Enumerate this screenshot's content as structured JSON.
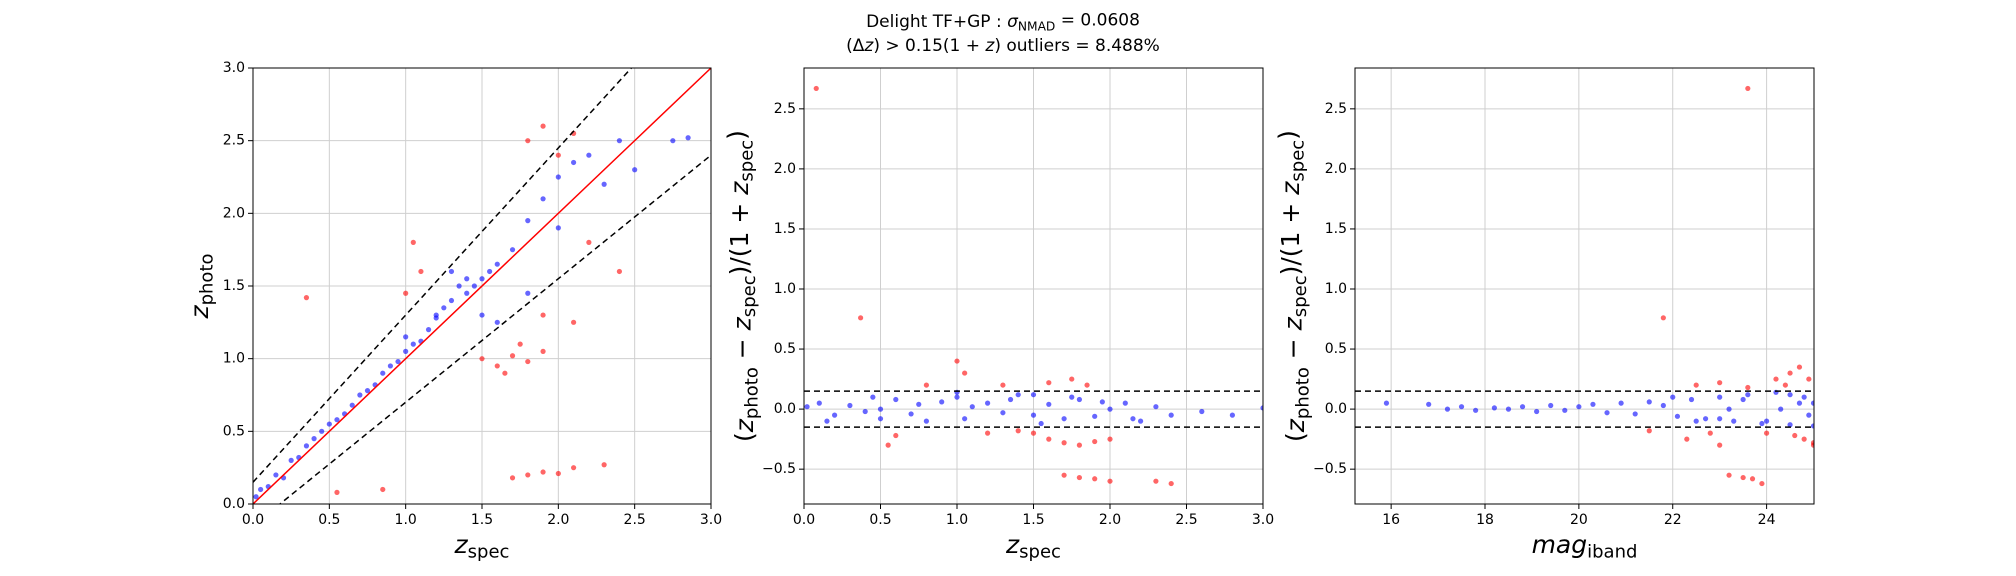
{
  "suptitle": [
    {
      "text": "Delight TF+GP : "
    },
    {
      "text": "σ",
      "italic": true
    },
    {
      "text": "NMAD",
      "sub": true
    },
    {
      "text": "  = 0.0608"
    }
  ],
  "subtitle": [
    {
      "text": "(Δ"
    },
    {
      "text": "z",
      "italic": true
    },
    {
      "text": ") > 0.15(1 + "
    },
    {
      "text": "z",
      "italic": true
    },
    {
      "text": ") outliers =  8.488%"
    }
  ],
  "chart_data": [
    {
      "type": "scatter",
      "threshold": 0.15,
      "reference": "identity",
      "xlabel": [
        {
          "text": "z",
          "italic": true
        },
        {
          "text": "spec",
          "sub": true
        }
      ],
      "ylabel": [
        {
          "text": "z",
          "italic": true
        },
        {
          "text": "photo",
          "sub": true
        }
      ],
      "xlim": [
        0,
        3
      ],
      "ylim": [
        0,
        3
      ],
      "grid": true,
      "xticks": [
        {
          "value": 0,
          "label": "0.0"
        },
        {
          "value": 0.5,
          "label": "0.5"
        },
        {
          "value": 1,
          "label": "1.0"
        },
        {
          "value": 1.5,
          "label": "1.5"
        },
        {
          "value": 2,
          "label": "2.0"
        },
        {
          "value": 2.5,
          "label": "2.5"
        },
        {
          "value": 3,
          "label": "3.0"
        }
      ],
      "yticks": [
        {
          "value": 0,
          "label": "0.0"
        },
        {
          "value": 0.5,
          "label": "0.5"
        },
        {
          "value": 1,
          "label": "1.0"
        },
        {
          "value": 1.5,
          "label": "1.5"
        },
        {
          "value": 2,
          "label": "2.0"
        },
        {
          "value": 2.5,
          "label": "2.5"
        },
        {
          "value": 3,
          "label": "3.0"
        }
      ],
      "series": [
        {
          "color": "#0000ff",
          "x": [
            0.02,
            0.05,
            0.1,
            0.15,
            0.2,
            0.25,
            0.3,
            0.35,
            0.4,
            0.45,
            0.5,
            0.55,
            0.6,
            0.65,
            0.7,
            0.75,
            0.8,
            0.85,
            0.9,
            0.95,
            1.0,
            1.05,
            1.1,
            1.15,
            1.2,
            1.25,
            1.3,
            1.35,
            1.4,
            1.45,
            1.5,
            1.55,
            1.6,
            1.7,
            1.8,
            1.9,
            2.0,
            2.1,
            2.2,
            2.3,
            2.4,
            2.5,
            2.75,
            2.85,
            1.0,
            1.2,
            1.3,
            1.4,
            1.5,
            1.6,
            1.8,
            2.0
          ],
          "y": [
            0.05,
            0.1,
            0.12,
            0.2,
            0.18,
            0.3,
            0.32,
            0.4,
            0.45,
            0.5,
            0.55,
            0.58,
            0.62,
            0.68,
            0.75,
            0.78,
            0.82,
            0.9,
            0.95,
            0.98,
            1.05,
            1.1,
            1.12,
            1.2,
            1.28,
            1.35,
            1.4,
            1.5,
            1.55,
            1.5,
            1.55,
            1.6,
            1.65,
            1.75,
            1.95,
            2.1,
            2.25,
            2.35,
            2.4,
            2.2,
            2.5,
            2.3,
            2.5,
            2.52,
            1.15,
            1.3,
            1.6,
            1.45,
            1.3,
            1.25,
            1.45,
            1.9
          ]
        },
        {
          "color": "#ff0000",
          "x": [
            1.5,
            1.6,
            1.7,
            1.8,
            1.9,
            1.65,
            1.75,
            1.7,
            1.8,
            1.9,
            2.0,
            2.1,
            2.3,
            1.8,
            1.9,
            2.0,
            2.1,
            1.0,
            1.05,
            1.1,
            0.35,
            0.55,
            0.85,
            2.2,
            2.4,
            1.9,
            2.1
          ],
          "y": [
            1.0,
            0.95,
            1.02,
            0.98,
            1.05,
            0.9,
            1.1,
            0.18,
            0.2,
            0.22,
            0.21,
            0.25,
            0.27,
            2.5,
            2.6,
            2.4,
            2.55,
            1.45,
            1.8,
            1.6,
            1.42,
            0.08,
            0.1,
            1.8,
            1.6,
            1.3,
            1.25
          ]
        }
      ]
    },
    {
      "type": "scatter",
      "threshold": 0.15,
      "reference": "band",
      "xlabel": [
        {
          "text": "z",
          "italic": true
        },
        {
          "text": "spec",
          "sub": true
        }
      ],
      "ylabel": [
        {
          "text": "(",
          "italic": false
        },
        {
          "text": "z",
          "italic": true
        },
        {
          "text": "photo",
          "sub": true
        },
        {
          "text": " − "
        },
        {
          "text": "z",
          "italic": true
        },
        {
          "text": "spec",
          "sub": true
        },
        {
          "text": ")/(1 + "
        },
        {
          "text": "z",
          "italic": true
        },
        {
          "text": "spec",
          "sub": true
        },
        {
          "text": ")"
        }
      ],
      "xlim": [
        0,
        3
      ],
      "ylim": [
        -0.79,
        2.84
      ],
      "grid": true,
      "xticks": [
        {
          "value": 0,
          "label": "0.0"
        },
        {
          "value": 0.5,
          "label": "0.5"
        },
        {
          "value": 1,
          "label": "1.0"
        },
        {
          "value": 1.5,
          "label": "1.5"
        },
        {
          "value": 2,
          "label": "2.0"
        },
        {
          "value": 2.5,
          "label": "2.5"
        },
        {
          "value": 3,
          "label": "3.0"
        }
      ],
      "yticks": [
        {
          "value": -0.5,
          "label": "−0.5"
        },
        {
          "value": 0,
          "label": "0.0"
        },
        {
          "value": 0.5,
          "label": "0.5"
        },
        {
          "value": 1,
          "label": "1.0"
        },
        {
          "value": 1.5,
          "label": "1.5"
        },
        {
          "value": 2,
          "label": "2.0"
        },
        {
          "value": 2.5,
          "label": "2.5"
        }
      ],
      "series": [
        {
          "color": "#0000ff",
          "x": [
            0.02,
            0.1,
            0.2,
            0.3,
            0.4,
            0.5,
            0.6,
            0.7,
            0.8,
            0.9,
            1.0,
            1.1,
            1.2,
            1.3,
            1.4,
            1.5,
            1.6,
            1.7,
            1.8,
            1.9,
            2.0,
            2.1,
            2.2,
            2.3,
            2.4,
            2.6,
            2.8,
            3.0,
            0.15,
            0.45,
            0.75,
            1.05,
            1.35,
            1.55,
            1.75,
            1.95,
            2.15,
            0.5,
            1.0,
            1.5
          ],
          "y": [
            0.02,
            0.05,
            -0.05,
            0.03,
            -0.02,
            0.0,
            0.08,
            -0.04,
            -0.1,
            0.06,
            0.1,
            0.02,
            0.05,
            -0.03,
            0.12,
            -0.05,
            0.04,
            -0.08,
            0.08,
            -0.06,
            0.0,
            0.05,
            -0.1,
            0.02,
            -0.05,
            -0.02,
            -0.05,
            0.01,
            -0.1,
            0.1,
            0.04,
            -0.08,
            0.08,
            -0.12,
            0.1,
            0.06,
            -0.08,
            -0.08,
            0.14,
            0.12
          ]
        },
        {
          "color": "#ff0000",
          "x": [
            0.08,
            0.37,
            1.0,
            1.05,
            0.8,
            1.3,
            1.5,
            1.6,
            1.7,
            1.8,
            1.9,
            2.0,
            1.7,
            1.8,
            1.9,
            2.0,
            2.3,
            2.4,
            1.6,
            1.75,
            1.85,
            0.55,
            0.6,
            1.2,
            1.4
          ],
          "y": [
            2.67,
            0.76,
            0.4,
            0.3,
            0.2,
            0.2,
            -0.2,
            -0.25,
            -0.28,
            -0.3,
            -0.27,
            -0.25,
            -0.55,
            -0.57,
            -0.58,
            -0.6,
            -0.6,
            -0.62,
            0.22,
            0.25,
            0.2,
            -0.3,
            -0.22,
            -0.2,
            -0.18
          ]
        }
      ]
    },
    {
      "type": "scatter",
      "threshold": 0.15,
      "reference": "band",
      "xlabel": [
        {
          "text": "mag",
          "italic": true
        },
        {
          "text": "iband",
          "sub": true
        }
      ],
      "ylabel": [
        {
          "text": "("
        },
        {
          "text": "z",
          "italic": true
        },
        {
          "text": "photo",
          "sub": true
        },
        {
          "text": " − "
        },
        {
          "text": "z",
          "italic": true
        },
        {
          "text": "spec",
          "sub": true
        },
        {
          "text": ")/(1 + "
        },
        {
          "text": "z",
          "italic": true
        },
        {
          "text": "spec",
          "sub": true
        },
        {
          "text": ")"
        }
      ],
      "xlim": [
        15.23,
        25.01
      ],
      "ylim": [
        -0.79,
        2.84
      ],
      "grid": true,
      "xticks": [
        16,
        18,
        20,
        22,
        24
      ],
      "yticks": [
        {
          "value": -0.5,
          "label": "−0.5"
        },
        {
          "value": 0,
          "label": "0.0"
        },
        {
          "value": 0.5,
          "label": "0.5"
        },
        {
          "value": 1,
          "label": "1.0"
        },
        {
          "value": 1.5,
          "label": "1.5"
        },
        {
          "value": 2,
          "label": "2.0"
        },
        {
          "value": 2.5,
          "label": "2.5"
        }
      ],
      "series": [
        {
          "color": "#0000ff",
          "x": [
            15.9,
            16.8,
            17.2,
            17.5,
            17.8,
            18.2,
            18.5,
            18.8,
            19.1,
            19.4,
            19.7,
            20.0,
            20.3,
            20.6,
            20.9,
            21.2,
            21.5,
            21.8,
            22.1,
            22.4,
            22.7,
            23.0,
            23.3,
            23.6,
            23.9,
            24.2,
            24.5,
            24.8,
            25.0,
            22.0,
            22.5,
            23.0,
            23.5,
            24.0,
            24.5,
            25.0,
            23.2,
            24.3,
            24.7,
            24.9
          ],
          "y": [
            0.05,
            0.04,
            0.0,
            0.02,
            -0.01,
            0.01,
            0.0,
            0.02,
            -0.02,
            0.03,
            -0.01,
            0.02,
            0.04,
            -0.03,
            0.05,
            -0.04,
            0.06,
            0.03,
            -0.06,
            0.08,
            -0.08,
            0.1,
            -0.1,
            0.12,
            -0.12,
            0.14,
            -0.13,
            0.1,
            0.05,
            0.1,
            -0.1,
            -0.08,
            0.08,
            -0.1,
            0.12,
            -0.14,
            0.0,
            0.0,
            0.05,
            -0.05
          ]
        },
        {
          "color": "#ff0000",
          "x": [
            23.6,
            21.8,
            22.5,
            23.0,
            23.2,
            23.5,
            23.7,
            23.9,
            24.2,
            24.5,
            24.8,
            25.0,
            24.0,
            24.4,
            24.7,
            25.0,
            22.8,
            23.0,
            23.6,
            24.6,
            24.9,
            21.5,
            22.3
          ],
          "y": [
            2.67,
            0.76,
            0.2,
            -0.3,
            -0.55,
            -0.57,
            -0.58,
            -0.62,
            0.25,
            0.3,
            -0.25,
            -0.28,
            -0.2,
            0.2,
            0.35,
            -0.3,
            -0.2,
            0.22,
            0.18,
            -0.22,
            0.25,
            -0.18,
            -0.25
          ]
        }
      ]
    }
  ]
}
